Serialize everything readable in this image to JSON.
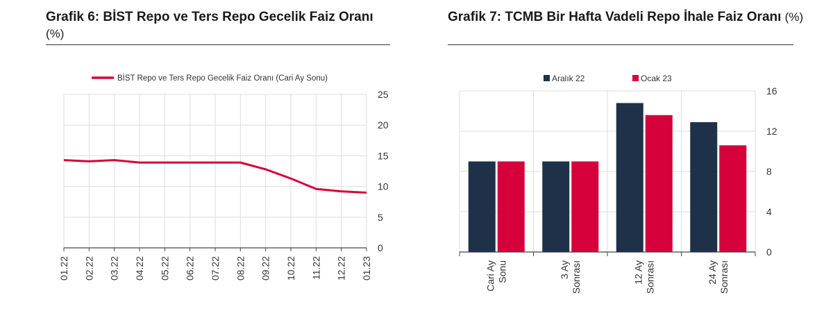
{
  "charts": [
    {
      "title_main": "Grafik 6:  BİST Repo ve Ters Repo Gecelik Faiz Oranı",
      "title_unit": "(%)"
    },
    {
      "title_main": "Grafik 7: TCMB Bir Hafta Vadeli Repo İhale Faiz Oranı",
      "title_unit": "(%)"
    }
  ],
  "chart_data": [
    {
      "type": "line",
      "title": "Grafik 6:  BİST Repo ve Ters Repo Gecelik Faiz Oranı (%)",
      "categories": [
        "01.22",
        "02.22",
        "03.22",
        "04.22",
        "05.22",
        "06.22",
        "07.22",
        "08.22",
        "09.22",
        "10.22",
        "11.22",
        "12.22",
        "01.23"
      ],
      "series": [
        {
          "name": "BİST Repo ve Ters Repo Gecelik Faiz Oranı (Cari Ay Sonu)",
          "values": [
            14.3,
            14.1,
            14.3,
            13.9,
            13.9,
            13.9,
            13.9,
            13.9,
            12.8,
            11.3,
            9.6,
            9.2,
            9.0
          ],
          "color": "#d6003a"
        }
      ],
      "ylim": [
        0,
        25
      ],
      "yticks": [
        0,
        5,
        10,
        15,
        20,
        25
      ],
      "y_axis_side": "right",
      "legend": "top-right",
      "grid": true
    },
    {
      "type": "bar",
      "title": "Grafik 7: TCMB Bir Hafta Vadeli Repo İhale Faiz Oranı (%)",
      "categories": [
        "Cari Ay Sonu",
        "3 Ay Sonrası",
        "12 Ay Sonrası",
        "24 Ay Sonrası"
      ],
      "category_lines": [
        [
          "Cari Ay",
          "Sonu"
        ],
        [
          "3 Ay",
          "Sonrası"
        ],
        [
          "12 Ay",
          "Sonrası"
        ],
        [
          "24 Ay",
          "Sonrası"
        ]
      ],
      "series": [
        {
          "name": "Aralık 22",
          "values": [
            9.0,
            9.0,
            14.8,
            12.9
          ],
          "color": "#1f3149"
        },
        {
          "name": "Ocak 23",
          "values": [
            9.0,
            9.0,
            13.6,
            10.6
          ],
          "color": "#d6003a"
        }
      ],
      "ylim": [
        0,
        16
      ],
      "yticks": [
        0,
        4,
        8,
        12,
        16
      ],
      "y_axis_side": "right",
      "legend": "top",
      "grid": true
    }
  ]
}
